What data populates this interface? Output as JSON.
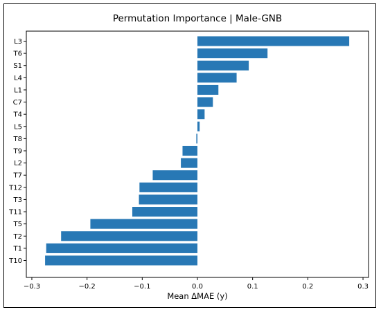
{
  "chart_data": {
    "type": "bar",
    "orientation": "horizontal",
    "title": "Permutation Importance | Male-GNB",
    "xlabel": "Mean ΔMAE (y)",
    "ylabel": "",
    "xlim": [
      -0.31,
      0.31
    ],
    "xticks": [
      -0.3,
      -0.2,
      -0.1,
      0.0,
      0.1,
      0.2,
      0.3
    ],
    "xtick_labels": [
      "−0.3",
      "−0.2",
      "−0.1",
      "0.0",
      "0.1",
      "0.2",
      "0.3"
    ],
    "grid": false,
    "bar_color": "#2878b5",
    "categories": [
      "L3",
      "T6",
      "S1",
      "L4",
      "L1",
      "C7",
      "T4",
      "L5",
      "T8",
      "T9",
      "L2",
      "T7",
      "T12",
      "T3",
      "T11",
      "T5",
      "T2",
      "T1",
      "T10"
    ],
    "values": [
      0.275,
      0.127,
      0.093,
      0.071,
      0.038,
      0.028,
      0.013,
      0.004,
      -0.002,
      -0.027,
      -0.03,
      -0.081,
      -0.105,
      -0.106,
      -0.118,
      -0.194,
      -0.247,
      -0.274,
      -0.276
    ]
  }
}
